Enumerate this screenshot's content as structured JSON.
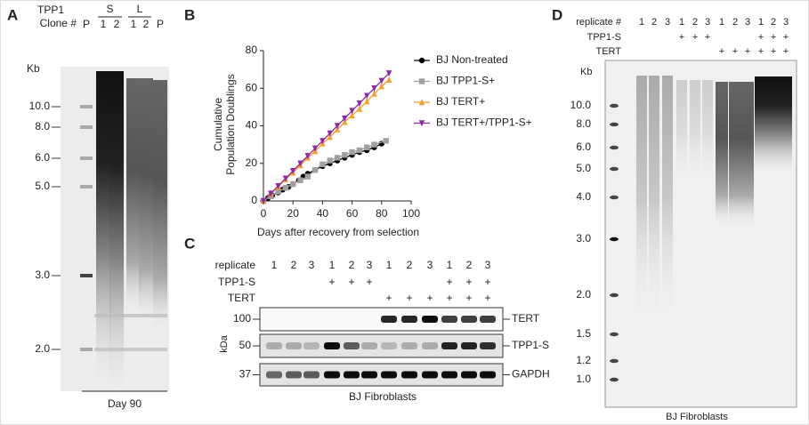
{
  "panel_a": {
    "letter": "A",
    "row_labels": [
      "TPP1",
      "Clone #"
    ],
    "groups": [
      "S",
      "L"
    ],
    "lanes": [
      "P",
      "1",
      "2",
      "1",
      "2",
      "P"
    ],
    "unit": "Kb",
    "markers": [
      "10.0",
      "8.0",
      "6.0",
      "5.0",
      "3.0",
      "2.0"
    ],
    "caption": "Day 90"
  },
  "chart_data": {
    "type": "line",
    "letter": "B",
    "ylabel": [
      "Cumulative",
      "Population Doublings"
    ],
    "xlabel": "Days after recovery from selection",
    "xlim": [
      0,
      100
    ],
    "ylim": [
      0,
      80
    ],
    "xticks": [
      0,
      20,
      40,
      60,
      80,
      100
    ],
    "yticks": [
      0,
      20,
      40,
      60,
      80
    ],
    "series": [
      {
        "name": "BJ Non-treated",
        "color": "#000000",
        "marker": "circle",
        "x": [
          0,
          3,
          6,
          10,
          13,
          17,
          20,
          24,
          27,
          30,
          35,
          40,
          45,
          50,
          55,
          60,
          65,
          70,
          75,
          80
        ],
        "values": [
          0,
          1.5,
          3,
          4.5,
          6,
          7.5,
          9,
          11,
          13,
          14.5,
          16.5,
          18.5,
          20,
          21.5,
          23,
          24.5,
          26,
          27,
          28.5,
          30.5
        ]
      },
      {
        "name": "BJ TPP1-S+",
        "color": "#a0a0a0",
        "marker": "square",
        "x": [
          0,
          5,
          10,
          15,
          20,
          25,
          30,
          35,
          40,
          45,
          50,
          55,
          60,
          65,
          70,
          75,
          83
        ],
        "values": [
          0,
          2.5,
          5,
          7,
          9,
          11,
          13,
          16.5,
          19.5,
          21.5,
          23,
          24.5,
          26,
          27,
          28.5,
          30,
          32
        ]
      },
      {
        "name": "BJ TERT+",
        "color": "#f5a02a",
        "marker": "triangle-up",
        "x": [
          0,
          5,
          10,
          15,
          20,
          25,
          30,
          35,
          40,
          45,
          50,
          55,
          60,
          65,
          70,
          75,
          80,
          85
        ],
        "values": [
          0,
          3.8,
          7.5,
          11.5,
          15,
          19,
          23,
          26.5,
          30.5,
          34,
          38,
          42,
          45.5,
          49,
          53,
          57,
          61,
          64.5
        ]
      },
      {
        "name": "BJ TERT+/TPP1-S+",
        "color": "#8e2aa8",
        "marker": "triangle-down",
        "x": [
          0,
          5,
          10,
          15,
          20,
          25,
          30,
          35,
          40,
          45,
          50,
          55,
          60,
          65,
          70,
          75,
          80,
          85
        ],
        "values": [
          0,
          4,
          8,
          12,
          16,
          20,
          24,
          28,
          32,
          36,
          40,
          44,
          48,
          52,
          56,
          60,
          64,
          68
        ]
      }
    ]
  },
  "panel_c": {
    "letter": "C",
    "rows": [
      {
        "label": "replicate",
        "lanes": [
          "1",
          "2",
          "3",
          "1",
          "2",
          "3",
          "1",
          "2",
          "3",
          "1",
          "2",
          "3"
        ]
      },
      {
        "label": "TPP1-S",
        "lanes": [
          null,
          null,
          null,
          "+",
          "+",
          "+",
          null,
          null,
          null,
          "+",
          "+",
          "+"
        ]
      },
      {
        "label": "TERT",
        "lanes": [
          null,
          null,
          null,
          null,
          null,
          null,
          "+",
          "+",
          "+",
          "+",
          "+",
          "+"
        ]
      }
    ],
    "blots": [
      {
        "size": "100",
        "band": "TERT"
      },
      {
        "size": "50",
        "band": "TPP1-S"
      },
      {
        "size": "37",
        "band": "GAPDH"
      }
    ],
    "unit": "kDa",
    "caption": "BJ Fibroblasts"
  },
  "panel_d": {
    "letter": "D",
    "rows": [
      {
        "label": "replicate #",
        "lanes": [
          "1",
          "2",
          "3",
          "1",
          "2",
          "3",
          "1",
          "2",
          "3",
          "1",
          "2",
          "3"
        ]
      },
      {
        "label": "TPP1-S",
        "lanes": [
          null,
          null,
          null,
          "+",
          "+",
          "+",
          null,
          null,
          null,
          "+",
          "+",
          "+"
        ]
      },
      {
        "label": "TERT",
        "lanes": [
          null,
          null,
          null,
          null,
          null,
          null,
          "+",
          "+",
          "+",
          "+",
          "+",
          "+"
        ]
      }
    ],
    "unit": "Kb",
    "markers": [
      "10.0",
      "8.0",
      "6.0",
      "5.0",
      "4.0",
      "3.0",
      "2.0",
      "1.5",
      "1.2",
      "1.0"
    ],
    "caption": "BJ Fibroblasts"
  }
}
